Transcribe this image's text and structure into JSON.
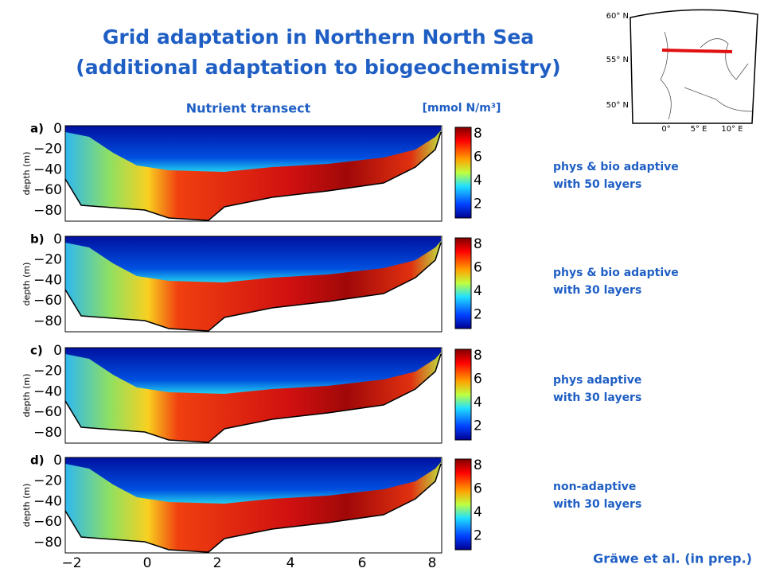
{
  "header": {
    "title": [
      "Grid adaptation in Northern North Sea",
      "(additional adaptation to biogeochemistry)"
    ]
  },
  "figure": {
    "title": "Nutrient transect",
    "unit": "[mmol N/m³]",
    "y_label": "depth (m)",
    "yticks": [
      "0",
      "−20",
      "−40",
      "−60",
      "−80"
    ],
    "xticks": [
      "−2",
      "0",
      "2",
      "4",
      "6",
      "8"
    ],
    "colorbar_ticks": [
      "8",
      "6",
      "4",
      "2"
    ],
    "panels": [
      {
        "letter": "a)",
        "description": [
          "phys & bio adaptive",
          "with 50 layers"
        ]
      },
      {
        "letter": "b)",
        "description": [
          "phys & bio adaptive",
          "with 30 layers"
        ]
      },
      {
        "letter": "c)",
        "description": [
          "phys adaptive",
          "with 30 layers"
        ]
      },
      {
        "letter": "d)",
        "description": [
          "non-adaptive",
          "with 30 layers"
        ]
      }
    ]
  },
  "map": {
    "lat_labels": [
      "60° N",
      "55° N",
      "50° N"
    ],
    "lon_labels": [
      "0°",
      "5° E",
      "10° E"
    ]
  },
  "citation": "Gräwe et al. (in prep.)"
}
